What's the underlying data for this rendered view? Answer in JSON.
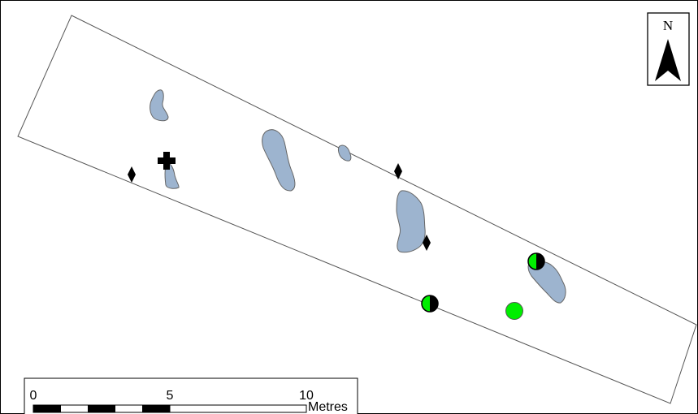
{
  "map": {
    "north_arrow": {
      "label": "N"
    },
    "scale_bar": {
      "ticks": [
        "0",
        "5",
        "10"
      ],
      "unit": "Metres"
    },
    "symbols": {
      "water_fill": "#9db4cf",
      "water_outline": "#666666",
      "green_fill": "#00ee00",
      "black": "#000000",
      "diamond_count": 3,
      "half_green_circle_count": 2,
      "green_circle_count": 1,
      "cross_count": 1
    }
  }
}
